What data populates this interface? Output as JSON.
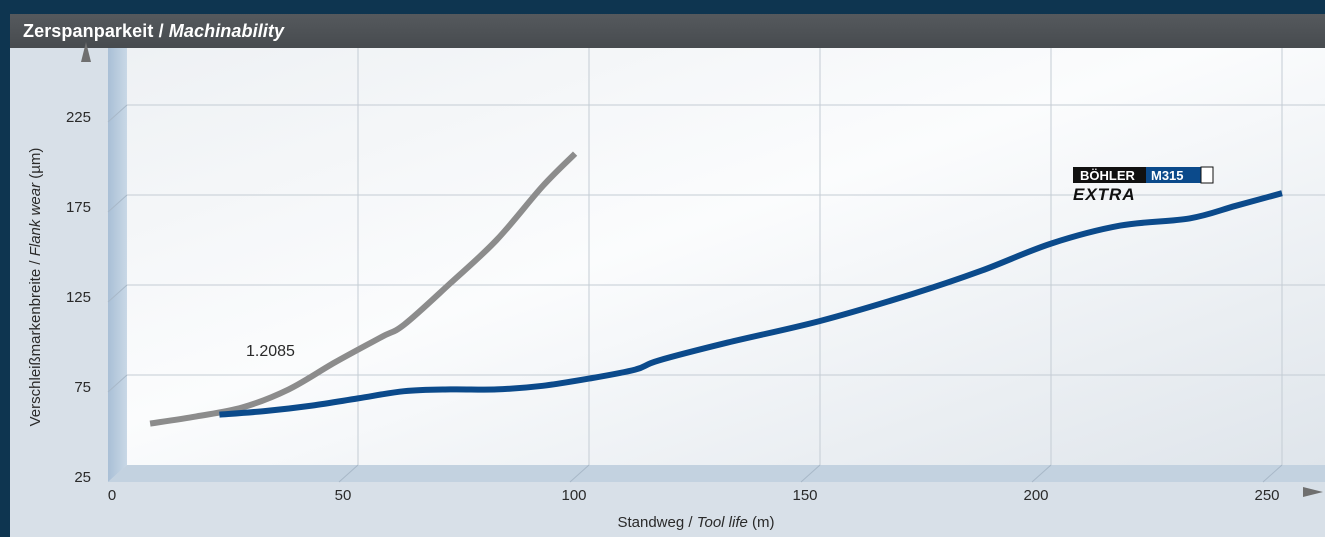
{
  "header": {
    "title_de": "Zerspanparkeit",
    "separator": "/",
    "title_en": "Machinability"
  },
  "chart_data": {
    "type": "line",
    "x_axis": {
      "label_de": "Standweg /",
      "label_en": "Tool life",
      "unit": "(m)",
      "range": [
        0,
        260
      ],
      "ticks": [
        0,
        50,
        100,
        150,
        200,
        250
      ]
    },
    "y_axis": {
      "label_de": "Verschleißmarkenbreite /",
      "label_en": "Flank wear",
      "unit": "(µm)",
      "range": [
        25,
        232
      ],
      "ticks": [
        25,
        75,
        125,
        175,
        225
      ]
    },
    "grid": true,
    "series": [
      {
        "name": "1.2085",
        "color": "#8c8c8c",
        "points": [
          [
            5,
            48
          ],
          [
            15,
            52
          ],
          [
            25,
            57
          ],
          [
            35,
            67
          ],
          [
            45,
            82
          ],
          [
            55,
            96
          ],
          [
            60,
            103
          ],
          [
            70,
            126
          ],
          [
            80,
            150
          ],
          [
            90,
            180
          ],
          [
            97,
            198
          ]
        ]
      },
      {
        "name": "BÖHLER M315 EXTRA",
        "color": "#0b4a8b",
        "points": [
          [
            20,
            53
          ],
          [
            30,
            55
          ],
          [
            40,
            58
          ],
          [
            50,
            62
          ],
          [
            60,
            66
          ],
          [
            70,
            67
          ],
          [
            80,
            67
          ],
          [
            90,
            69
          ],
          [
            100,
            73
          ],
          [
            110,
            78
          ],
          [
            115,
            83
          ],
          [
            130,
            93
          ],
          [
            150,
            105
          ],
          [
            170,
            120
          ],
          [
            185,
            133
          ],
          [
            200,
            148
          ],
          [
            215,
            158
          ],
          [
            230,
            162
          ],
          [
            240,
            169
          ],
          [
            250,
            176
          ]
        ]
      }
    ],
    "annotations": {
      "series1_label": "1.2085",
      "logo_brand": "BÖHLER",
      "logo_grade": "M315",
      "logo_line2": "EXTRA"
    }
  }
}
